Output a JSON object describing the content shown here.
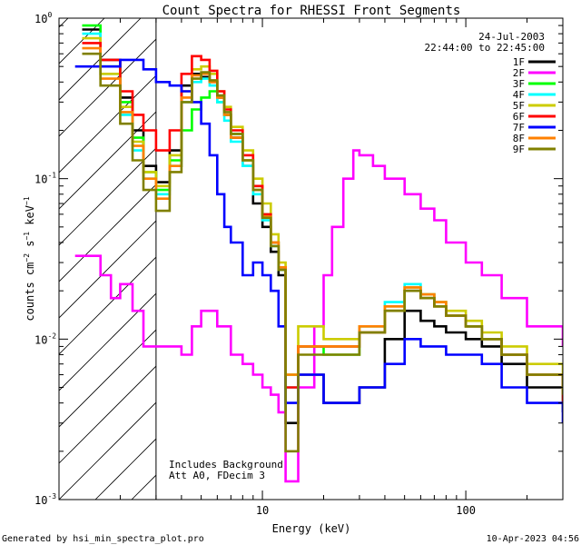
{
  "chart_data": {
    "type": "line",
    "title": "Count Spectra for RHESSI Front Segments",
    "xlabel": "Energy (keV)",
    "ylabel_base": "counts cm",
    "ylabel_exp1": "−2",
    "ylabel_mid": " s",
    "ylabel_exp2": "−1",
    "ylabel_end": " keV",
    "ylabel_exp3": "−1",
    "x_scale": "log",
    "y_scale": "log",
    "xlim": [
      1,
      300
    ],
    "ylim": [
      0.001,
      1
    ],
    "x_ticks": [
      {
        "value": 10,
        "label": "10"
      },
      {
        "value": 100,
        "label": "100"
      }
    ],
    "y_ticks": [
      {
        "value": 1,
        "base": "10",
        "exp": "0"
      },
      {
        "value": 0.1,
        "base": "10",
        "exp": "-1"
      },
      {
        "value": 0.01,
        "base": "10",
        "exp": "-2"
      },
      {
        "value": 0.001,
        "base": "10",
        "exp": "-3"
      }
    ],
    "legend_position": "top-right",
    "date": "24-Jul-2003",
    "time_range": "22:44:00 to 22:45:00",
    "annotations": [
      "Includes Background",
      "Att A0, FDecim 3"
    ],
    "hatched_region_xmax": 3,
    "series": [
      {
        "name": "1F",
        "color": "#000000",
        "x": [
          1.3,
          1.6,
          2.0,
          2.3,
          2.6,
          3.0,
          3.5,
          4.0,
          4.5,
          5.0,
          5.5,
          6.0,
          6.5,
          7.0,
          8.0,
          9.0,
          10,
          11,
          12,
          13,
          15,
          20,
          30,
          40,
          50,
          60,
          70,
          80,
          100,
          120,
          150,
          200,
          300
        ],
        "y": [
          0.85,
          0.55,
          0.32,
          0.2,
          0.12,
          0.095,
          0.15,
          0.38,
          0.45,
          0.43,
          0.4,
          0.32,
          0.25,
          0.18,
          0.12,
          0.07,
          0.05,
          0.035,
          0.025,
          0.003,
          0.006,
          0.004,
          0.005,
          0.01,
          0.015,
          0.013,
          0.012,
          0.011,
          0.01,
          0.009,
          0.007,
          0.005,
          0.0035
        ]
      },
      {
        "name": "2F",
        "color": "#ff00ff",
        "x": [
          1.2,
          1.4,
          1.6,
          1.8,
          2.0,
          2.3,
          2.6,
          3.0,
          3.5,
          4.0,
          4.5,
          5.0,
          6.0,
          7.0,
          8.0,
          9.0,
          10,
          11,
          12,
          13,
          15,
          18,
          20,
          22,
          25,
          28,
          30,
          35,
          40,
          50,
          60,
          70,
          80,
          100,
          120,
          150,
          200,
          300
        ],
        "y": [
          0.033,
          0.033,
          0.025,
          0.018,
          0.022,
          0.015,
          0.009,
          0.009,
          0.009,
          0.008,
          0.012,
          0.015,
          0.012,
          0.008,
          0.007,
          0.006,
          0.005,
          0.0045,
          0.0035,
          0.0013,
          0.005,
          0.012,
          0.025,
          0.05,
          0.1,
          0.15,
          0.14,
          0.12,
          0.1,
          0.08,
          0.065,
          0.055,
          0.04,
          0.03,
          0.025,
          0.018,
          0.012,
          0.009
        ]
      },
      {
        "name": "3F",
        "color": "#00ff00",
        "x": [
          1.3,
          1.6,
          2.0,
          2.3,
          2.6,
          3.0,
          3.5,
          4.0,
          4.5,
          5.0,
          5.5,
          6.0,
          6.5,
          7.0,
          8.0,
          9.0,
          10,
          11,
          12,
          13,
          15,
          20,
          30,
          40,
          50,
          60,
          70,
          80,
          100,
          120,
          150,
          200,
          300
        ],
        "y": [
          0.9,
          0.5,
          0.3,
          0.18,
          0.11,
          0.085,
          0.13,
          0.2,
          0.27,
          0.32,
          0.35,
          0.3,
          0.25,
          0.19,
          0.13,
          0.09,
          0.06,
          0.04,
          0.028,
          0.006,
          0.009,
          0.008,
          0.011,
          0.015,
          0.02,
          0.018,
          0.016,
          0.014,
          0.012,
          0.01,
          0.008,
          0.006,
          0.004
        ]
      },
      {
        "name": "4F",
        "color": "#00ffff",
        "x": [
          1.3,
          1.6,
          2.0,
          2.3,
          2.6,
          3.0,
          3.5,
          4.0,
          4.5,
          5.0,
          5.5,
          6.0,
          6.5,
          7.0,
          8.0,
          9.0,
          10,
          11,
          12,
          13,
          15,
          20,
          30,
          40,
          50,
          60,
          70,
          80,
          100,
          120,
          150,
          200,
          300
        ],
        "y": [
          0.8,
          0.45,
          0.25,
          0.15,
          0.1,
          0.08,
          0.12,
          0.3,
          0.4,
          0.42,
          0.38,
          0.3,
          0.23,
          0.17,
          0.12,
          0.08,
          0.055,
          0.038,
          0.027,
          0.005,
          0.009,
          0.009,
          0.012,
          0.017,
          0.022,
          0.019,
          0.017,
          0.014,
          0.012,
          0.01,
          0.008,
          0.006,
          0.004
        ]
      },
      {
        "name": "5F",
        "color": "#cccc00",
        "x": [
          1.3,
          1.6,
          2.0,
          2.3,
          2.6,
          3.0,
          3.5,
          4.0,
          4.5,
          5.0,
          5.5,
          6.0,
          6.5,
          7.0,
          8.0,
          9.0,
          10,
          11,
          12,
          13,
          15,
          20,
          30,
          40,
          50,
          60,
          70,
          80,
          100,
          120,
          150,
          200,
          300
        ],
        "y": [
          0.75,
          0.45,
          0.28,
          0.17,
          0.11,
          0.09,
          0.14,
          0.35,
          0.48,
          0.5,
          0.45,
          0.35,
          0.28,
          0.21,
          0.15,
          0.1,
          0.07,
          0.045,
          0.03,
          0.006,
          0.012,
          0.01,
          0.012,
          0.016,
          0.021,
          0.019,
          0.017,
          0.015,
          0.013,
          0.011,
          0.009,
          0.007,
          0.005
        ]
      },
      {
        "name": "6F",
        "color": "#ff0000",
        "x": [
          1.3,
          1.6,
          2.0,
          2.3,
          2.6,
          3.0,
          3.5,
          4.0,
          4.5,
          5.0,
          5.5,
          6.0,
          6.5,
          7.0,
          8.0,
          9.0,
          10,
          11,
          12,
          13,
          15,
          20,
          30,
          40,
          50,
          60,
          70,
          80,
          100,
          120,
          150,
          200,
          300
        ],
        "y": [
          0.7,
          0.55,
          0.35,
          0.25,
          0.2,
          0.15,
          0.2,
          0.45,
          0.58,
          0.55,
          0.47,
          0.35,
          0.27,
          0.2,
          0.14,
          0.09,
          0.06,
          0.04,
          0.028,
          0.005,
          0.009,
          0.009,
          0.011,
          0.015,
          0.02,
          0.018,
          0.016,
          0.014,
          0.012,
          0.01,
          0.008,
          0.006,
          0.004
        ]
      },
      {
        "name": "7F",
        "color": "#0000ff",
        "x": [
          1.2,
          1.5,
          1.8,
          2.0,
          2.3,
          2.6,
          3.0,
          3.5,
          4.0,
          4.5,
          5.0,
          5.5,
          6.0,
          6.5,
          7.0,
          8.0,
          9.0,
          10,
          11,
          12,
          13,
          15,
          20,
          30,
          40,
          50,
          60,
          70,
          80,
          100,
          120,
          150,
          200,
          300
        ],
        "y": [
          0.5,
          0.5,
          0.5,
          0.55,
          0.55,
          0.48,
          0.4,
          0.38,
          0.35,
          0.3,
          0.22,
          0.14,
          0.08,
          0.05,
          0.04,
          0.025,
          0.03,
          0.025,
          0.02,
          0.012,
          0.004,
          0.006,
          0.004,
          0.005,
          0.007,
          0.01,
          0.009,
          0.009,
          0.008,
          0.008,
          0.007,
          0.005,
          0.004,
          0.003
        ]
      },
      {
        "name": "8F",
        "color": "#ff8000",
        "x": [
          1.3,
          1.6,
          2.0,
          2.3,
          2.6,
          3.0,
          3.5,
          4.0,
          4.5,
          5.0,
          5.5,
          6.0,
          6.5,
          7.0,
          8.0,
          9.0,
          10,
          11,
          12,
          13,
          15,
          20,
          30,
          40,
          50,
          60,
          70,
          80,
          100,
          120,
          150,
          200,
          300
        ],
        "y": [
          0.65,
          0.42,
          0.26,
          0.16,
          0.1,
          0.075,
          0.12,
          0.32,
          0.44,
          0.45,
          0.4,
          0.32,
          0.25,
          0.18,
          0.13,
          0.085,
          0.058,
          0.04,
          0.028,
          0.006,
          0.009,
          0.009,
          0.012,
          0.016,
          0.021,
          0.019,
          0.017,
          0.014,
          0.012,
          0.01,
          0.008,
          0.006,
          0.0045
        ]
      },
      {
        "name": "9F",
        "color": "#808000",
        "x": [
          1.3,
          1.6,
          2.0,
          2.3,
          2.6,
          3.0,
          3.5,
          4.0,
          4.5,
          5.0,
          5.5,
          6.0,
          6.5,
          7.0,
          8.0,
          9.0,
          10,
          11,
          12,
          13,
          15,
          20,
          30,
          40,
          50,
          60,
          70,
          80,
          100,
          120,
          150,
          200,
          300
        ],
        "y": [
          0.6,
          0.38,
          0.22,
          0.13,
          0.085,
          0.063,
          0.11,
          0.3,
          0.42,
          0.46,
          0.41,
          0.33,
          0.26,
          0.19,
          0.13,
          0.085,
          0.057,
          0.038,
          0.027,
          0.002,
          0.008,
          0.008,
          0.011,
          0.015,
          0.02,
          0.018,
          0.016,
          0.014,
          0.012,
          0.01,
          0.008,
          0.006,
          0.0045
        ]
      }
    ]
  },
  "footer": {
    "left": "Generated by hsi_min_spectra_plot.pro",
    "right": "10-Apr-2023 04:56"
  }
}
